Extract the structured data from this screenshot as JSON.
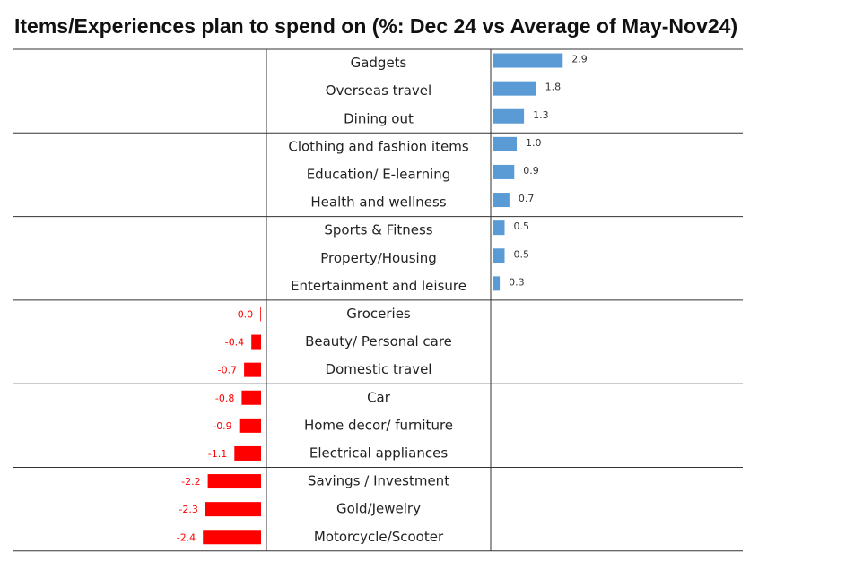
{
  "chart_data": {
    "type": "diverging-bar",
    "title": "Items/Experiences plan to spend on (%: Dec 24 vs Average of May-Nov24)",
    "categories": [
      "Gadgets",
      "Overseas travel",
      "Dining out",
      "Clothing and fashion items",
      "Education/ E-learning",
      "Health and wellness",
      "Sports & Fitness",
      "Property/Housing",
      "Entertainment and leisure",
      "Groceries",
      "Beauty/ Personal care",
      "Domestic travel",
      "Car",
      "Home decor/ furniture",
      "Electrical appliances",
      "Savings / Investment",
      "Gold/Jewelry",
      "Motorcycle/Scooter"
    ],
    "values": [
      2.9,
      1.8,
      1.3,
      1.0,
      0.9,
      0.7,
      0.5,
      0.5,
      0.3,
      -0.03,
      -0.4,
      -0.7,
      -0.8,
      -0.9,
      -1.1,
      -2.2,
      -2.3,
      -2.4
    ],
    "value_labels": [
      "2.9",
      "1.8",
      "1.3",
      "1.0",
      "0.9",
      "0.7",
      "0.5",
      "0.5",
      "0.3",
      "-0.0",
      "-0.4",
      "-0.7",
      "-0.8",
      "-0.9",
      "-1.1",
      "-2.2",
      "-2.3",
      "-2.4"
    ],
    "positive_color": "#5b9bd5",
    "negative_color": "#ff0000"
  }
}
